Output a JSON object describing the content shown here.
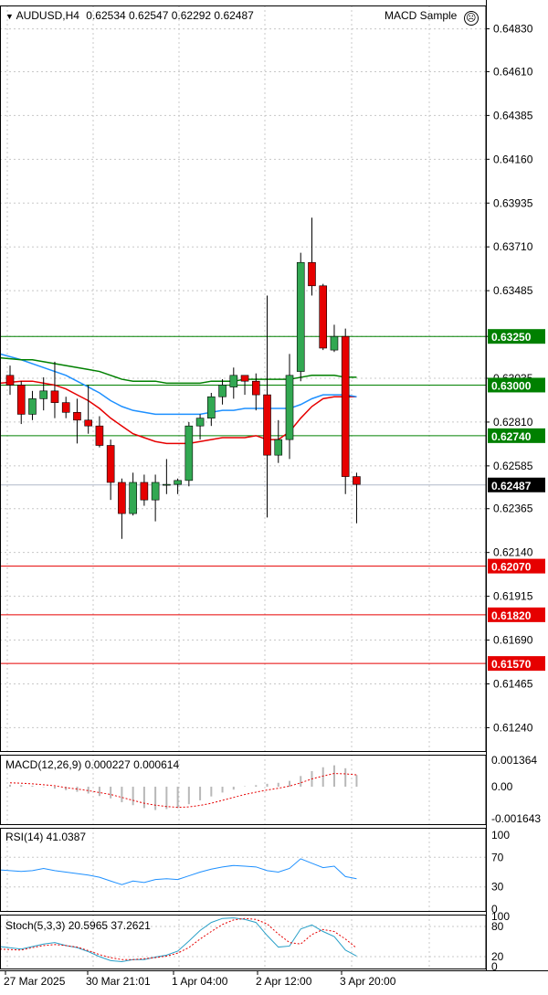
{
  "header": {
    "symbol": "AUDUSD,H4",
    "ohlc": "0.62534 0.62547 0.62292 0.62487",
    "expert": "MACD Sample",
    "expert_icon": "sad-face-icon"
  },
  "price_axis": {
    "ticks": [
      "0.64830",
      "0.64610",
      "0.64385",
      "0.64160",
      "0.63935",
      "0.63710",
      "0.63485",
      "0.63250",
      "0.63035",
      "0.62810",
      "0.62585",
      "0.62365",
      "0.62140",
      "0.61915",
      "0.61690",
      "0.61465",
      "0.61240"
    ],
    "current": "0.62487",
    "levels": [
      {
        "label": "0.63250",
        "price": 0.6325,
        "color": "#008000"
      },
      {
        "label": "0.63000",
        "price": 0.63,
        "color": "#008000"
      },
      {
        "label": "0.62740",
        "price": 0.6274,
        "color": "#008000"
      },
      {
        "label": "0.62070",
        "price": 0.6207,
        "color": "#e60000"
      },
      {
        "label": "0.61820",
        "price": 0.6182,
        "color": "#e60000"
      },
      {
        "label": "0.61570",
        "price": 0.6157,
        "color": "#e60000"
      }
    ]
  },
  "macd": {
    "label": "MACD(12,26,9) 0.000227 0.000614",
    "ticks": [
      "0.001364",
      "0.00",
      "-0.001643"
    ]
  },
  "rsi": {
    "label": "RSI(14) 41.0387",
    "ticks": [
      "100",
      "70",
      "30",
      "0"
    ]
  },
  "stoch": {
    "label": "Stoch(5,3,3) 20.5965 37.2621",
    "ticks": [
      "100",
      "80",
      "20",
      "0"
    ]
  },
  "time_axis": [
    "27 Mar 2025",
    "30 Mar 21:01",
    "1 Apr 04:00",
    "2 Apr 12:00",
    "3 Apr 20:00"
  ],
  "colors": {
    "bull": "#32a852",
    "bear": "#e60000",
    "ma_fast": "#e60000",
    "ma_mid": "#1e90ff",
    "ma_slow": "#008000",
    "grid": "#c8c8c8"
  },
  "chart_data": {
    "type": "candlestick",
    "symbol": "AUDUSD",
    "timeframe": "H4",
    "ylim": [
      0.6112,
      0.6495
    ],
    "candles": [
      {
        "o": 0.6305,
        "h": 0.631,
        "l": 0.6295,
        "c": 0.63
      },
      {
        "o": 0.63,
        "h": 0.6302,
        "l": 0.628,
        "c": 0.6285
      },
      {
        "o": 0.6285,
        "h": 0.6297,
        "l": 0.6282,
        "c": 0.6293
      },
      {
        "o": 0.6293,
        "h": 0.6304,
        "l": 0.6287,
        "c": 0.6297
      },
      {
        "o": 0.6297,
        "h": 0.6312,
        "l": 0.6283,
        "c": 0.6291
      },
      {
        "o": 0.6291,
        "h": 0.6294,
        "l": 0.6283,
        "c": 0.6286
      },
      {
        "o": 0.6286,
        "h": 0.6293,
        "l": 0.627,
        "c": 0.6282
      },
      {
        "o": 0.6282,
        "h": 0.63,
        "l": 0.6275,
        "c": 0.6279
      },
      {
        "o": 0.6279,
        "h": 0.6284,
        "l": 0.6268,
        "c": 0.6269
      },
      {
        "o": 0.6269,
        "h": 0.6272,
        "l": 0.6241,
        "c": 0.625
      },
      {
        "o": 0.625,
        "h": 0.6252,
        "l": 0.6221,
        "c": 0.6234
      },
      {
        "o": 0.6234,
        "h": 0.6255,
        "l": 0.6233,
        "c": 0.625
      },
      {
        "o": 0.625,
        "h": 0.6254,
        "l": 0.6238,
        "c": 0.6241
      },
      {
        "o": 0.6241,
        "h": 0.6254,
        "l": 0.623,
        "c": 0.625
      },
      {
        "o": 0.6249,
        "h": 0.6262,
        "l": 0.6244,
        "c": 0.6249
      },
      {
        "o": 0.6249,
        "h": 0.6252,
        "l": 0.6244,
        "c": 0.6251
      },
      {
        "o": 0.6251,
        "h": 0.6281,
        "l": 0.6248,
        "c": 0.6279
      },
      {
        "o": 0.6279,
        "h": 0.6285,
        "l": 0.6272,
        "c": 0.6283
      },
      {
        "o": 0.6283,
        "h": 0.6296,
        "l": 0.6279,
        "c": 0.6294
      },
      {
        "o": 0.6294,
        "h": 0.6303,
        "l": 0.629,
        "c": 0.63
      },
      {
        "o": 0.6299,
        "h": 0.6309,
        "l": 0.6293,
        "c": 0.6305
      },
      {
        "o": 0.6305,
        "h": 0.6305,
        "l": 0.6295,
        "c": 0.6302
      },
      {
        "o": 0.6302,
        "h": 0.6306,
        "l": 0.6287,
        "c": 0.6295
      },
      {
        "o": 0.6295,
        "h": 0.6346,
        "l": 0.6232,
        "c": 0.6264
      },
      {
        "o": 0.6264,
        "h": 0.6282,
        "l": 0.626,
        "c": 0.6272
      },
      {
        "o": 0.6272,
        "h": 0.6316,
        "l": 0.6262,
        "c": 0.6305
      },
      {
        "o": 0.6307,
        "h": 0.6368,
        "l": 0.6302,
        "c": 0.6363
      },
      {
        "o": 0.6363,
        "h": 0.6386,
        "l": 0.6346,
        "c": 0.6351
      },
      {
        "o": 0.6351,
        "h": 0.6352,
        "l": 0.6318,
        "c": 0.6319
      },
      {
        "o": 0.6318,
        "h": 0.6331,
        "l": 0.6317,
        "c": 0.6325
      },
      {
        "o": 0.6325,
        "h": 0.6329,
        "l": 0.6244,
        "c": 0.6253
      },
      {
        "o": 0.6253,
        "h": 0.6255,
        "l": 0.6229,
        "c": 0.6249
      }
    ],
    "moving_averages": [
      {
        "color": "#e60000",
        "values": [
          0.6301,
          0.6302,
          0.6302,
          0.6301,
          0.63,
          0.6298,
          0.6295,
          0.6292,
          0.6288,
          0.6283,
          0.6279,
          0.6275,
          0.6273,
          0.6271,
          0.627,
          0.627,
          0.627,
          0.6271,
          0.6272,
          0.6273,
          0.6273,
          0.6273,
          0.6274,
          0.6272,
          0.6272,
          0.6276,
          0.6283,
          0.6289,
          0.6293,
          0.6294,
          0.6294,
          0.6294
        ]
      },
      {
        "color": "#1e90ff",
        "values": [
          0.6316,
          0.6313,
          0.6311,
          0.6309,
          0.6307,
          0.6305,
          0.6302,
          0.6299,
          0.6296,
          0.6292,
          0.6289,
          0.6287,
          0.6286,
          0.6285,
          0.6285,
          0.6285,
          0.6285,
          0.6285,
          0.6286,
          0.6287,
          0.6287,
          0.6288,
          0.6288,
          0.6288,
          0.6288,
          0.6288,
          0.629,
          0.6293,
          0.6295,
          0.6295,
          0.6295,
          0.6294
        ]
      },
      {
        "color": "#008000",
        "values": [
          0.6314,
          0.6313,
          0.6313,
          0.6312,
          0.6311,
          0.631,
          0.6309,
          0.6308,
          0.6307,
          0.6305,
          0.6303,
          0.6302,
          0.6302,
          0.6302,
          0.6301,
          0.6301,
          0.6301,
          0.6301,
          0.6302,
          0.6302,
          0.6302,
          0.6303,
          0.6303,
          0.6303,
          0.6303,
          0.6303,
          0.6304,
          0.6305,
          0.6305,
          0.6305,
          0.6304,
          0.6304
        ]
      }
    ],
    "indicators": {
      "macd": {
        "ylim": [
          -0.001643,
          0.001364
        ],
        "histogram": [
          0.0001,
          8e-05,
          5e-05,
          -2e-05,
          -0.0001,
          -0.00018,
          -0.00026,
          -0.00035,
          -0.00048,
          -0.0006,
          -0.0008,
          -0.00095,
          -0.0011,
          -0.0012,
          -0.00115,
          -0.0011,
          -0.0009,
          -0.0007,
          -0.0005,
          -0.0003,
          -0.00015,
          2e-05,
          8e-05,
          0.00015,
          0.0002,
          0.0003,
          0.00055,
          0.0008,
          0.001,
          0.0011,
          0.00095,
          0.0006
        ],
        "signal": [
          0.0002,
          0.00018,
          0.00015,
          0.0001,
          5e-05,
          -5e-05,
          -0.00012,
          -0.0002,
          -0.0003,
          -0.0004,
          -0.00055,
          -0.0007,
          -0.00085,
          -0.00095,
          -0.00102,
          -0.00106,
          -0.00104,
          -0.00096,
          -0.00085,
          -0.0007,
          -0.00055,
          -0.0004,
          -0.00028,
          -0.00017,
          -8e-05,
          3e-05,
          0.0002,
          0.0004,
          0.00055,
          0.00068,
          0.00066,
          0.00061
        ]
      },
      "rsi": {
        "ylim": [
          0,
          100
        ],
        "values": [
          53,
          51,
          52,
          55,
          52,
          50,
          48,
          46,
          43,
          38,
          33,
          38,
          36,
          40,
          41,
          40,
          45,
          50,
          54,
          57,
          59,
          58,
          57,
          52,
          50,
          55,
          68,
          62,
          56,
          58,
          44,
          41
        ]
      },
      "stochastic": {
        "ylim": [
          0,
          100
        ],
        "main": [
          40,
          35,
          40,
          45,
          48,
          42,
          38,
          30,
          20,
          12,
          10,
          14,
          14,
          19,
          23,
          31,
          51,
          72,
          88,
          96,
          97,
          94,
          88,
          62,
          39,
          41,
          75,
          83,
          70,
          60,
          33,
          21
        ],
        "signal": [
          35,
          33,
          38,
          42,
          44,
          42,
          39,
          32,
          24,
          18,
          14,
          14,
          16,
          18,
          21,
          27,
          38,
          55,
          70,
          84,
          93,
          96,
          94,
          85,
          65,
          48,
          45,
          64,
          74,
          70,
          55,
          37
        ]
      }
    }
  }
}
